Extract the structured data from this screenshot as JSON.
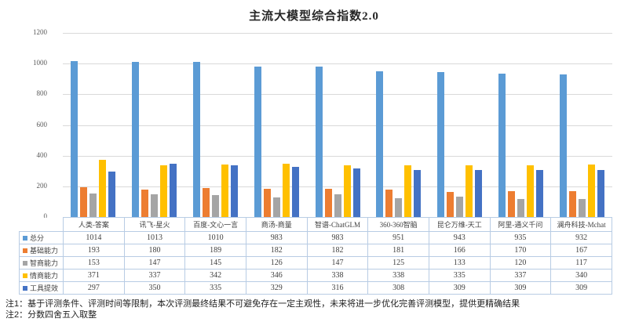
{
  "title": "主流大模型综合指数2.0",
  "chart_data": {
    "type": "bar",
    "title": "主流大模型综合指数2.0",
    "categories": [
      "人类-答案",
      "讯飞-星火",
      "百度-文心一言",
      "商汤-商量",
      "智谱-ChatGLM",
      "360-360智脑",
      "昆仑万维-天工",
      "阿里-通义千问",
      "澜舟科技-Mchat"
    ],
    "series": [
      {
        "name": "总分",
        "color": "#5B9BD5",
        "values": [
          1014,
          1013,
          1010,
          983,
          983,
          951,
          943,
          935,
          932
        ]
      },
      {
        "name": "基础能力",
        "color": "#ED7D31",
        "values": [
          193,
          180,
          189,
          182,
          182,
          181,
          166,
          170,
          167
        ]
      },
      {
        "name": "智商能力",
        "color": "#A5A5A5",
        "values": [
          153,
          147,
          145,
          126,
          147,
          125,
          133,
          120,
          117
        ]
      },
      {
        "name": "情商能力",
        "color": "#FFC000",
        "values": [
          371,
          337,
          342,
          346,
          338,
          338,
          335,
          337,
          340
        ]
      },
      {
        "name": "工具提效",
        "color": "#4472C4",
        "values": [
          297,
          350,
          335,
          329,
          316,
          308,
          309,
          309,
          309
        ]
      }
    ],
    "xlabel": "",
    "ylabel": "",
    "ylim": [
      0,
      1200
    ],
    "ytick_step": 200,
    "grid": true,
    "legend_position": "table-left"
  },
  "footnotes": [
    "注1：基于评测条件、评测时间等限制，本次评测最终结果不可避免存在一定主观性，未来将进一步优化完善评测模型，提供更精确结果",
    "注2：分数四舍五入取整"
  ]
}
